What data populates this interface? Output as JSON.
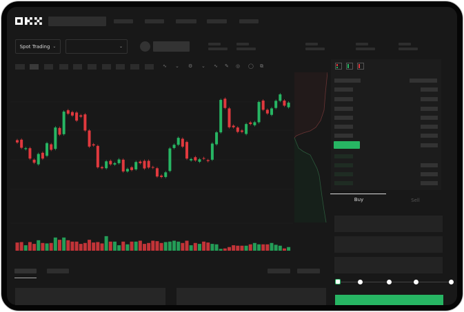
{
  "header": {
    "logo": "OKX"
  },
  "toolbar": {
    "market_label": "Spot Trading",
    "pair_select": ""
  },
  "trade": {
    "buy_tab": "Buy",
    "sell_tab": "Sell",
    "active_tab": "Buy",
    "leverage_slider_value": 0,
    "slider_steps": [
      0,
      25,
      50,
      75,
      100
    ]
  },
  "colors": {
    "up": "#27b563",
    "down": "#e0393e",
    "background": "#181818"
  },
  "chart_data": {
    "type": "candlestick",
    "candles": [
      [
        50,
        48
      ],
      [
        50.4,
        43.4
      ],
      [
        42.2,
        43
      ],
      [
        43,
        34
      ],
      [
        33,
        30.4
      ],
      [
        29,
        38
      ],
      [
        39,
        34
      ],
      [
        36.4,
        47.4
      ],
      [
        46.4,
        41.6
      ],
      [
        42.4,
        61
      ],
      [
        60.6,
        54.8
      ],
      [
        55.2,
        74.8
      ],
      [
        76,
        73
      ],
      [
        74.4,
        71.4
      ],
      [
        74,
        67
      ],
      [
        71.6,
        70.4
      ],
      [
        72.4,
        58.4
      ],
      [
        58.4,
        44.4
      ],
      [
        46.4,
        45.4
      ],
      [
        45,
        26.4
      ],
      [
        26.6,
        25.6
      ],
      [
        25.6,
        31.6
      ],
      [
        32,
        29
      ],
      [
        28.8,
        30
      ],
      [
        30,
        33.2
      ],
      [
        33,
        22.8
      ],
      [
        22.8,
        25
      ],
      [
        26.4,
        24
      ],
      [
        24.6,
        31
      ],
      [
        31.4,
        30
      ],
      [
        32,
        25.4
      ],
      [
        32,
        26.2
      ],
      [
        26.6,
        26
      ],
      [
        25.6,
        18.4
      ],
      [
        19.2,
        18
      ],
      [
        18,
        22
      ],
      [
        23.2,
        42.8
      ],
      [
        43.2,
        46
      ],
      [
        46,
        52
      ],
      [
        51.2,
        44.4
      ],
      [
        48.4,
        34
      ],
      [
        32.4,
        33.6
      ],
      [
        35.2,
        32.4
      ],
      [
        31.2,
        33.4
      ],
      [
        34.4,
        34
      ],
      [
        32.6,
        31.8
      ],
      [
        33,
        47
      ],
      [
        46.4,
        56.8
      ],
      [
        56.8,
        85
      ],
      [
        86,
        78
      ],
      [
        77.6,
        61.2
      ],
      [
        62.6,
        61.2
      ],
      [
        61,
        57.2
      ],
      [
        58.4,
        57.2
      ],
      [
        55.4,
        64
      ],
      [
        65.4,
        64
      ],
      [
        63,
        65.6
      ],
      [
        65.6,
        83.2
      ],
      [
        84.4,
        76.4
      ],
      [
        76.4,
        73.2
      ],
      [
        72,
        77.6
      ],
      [
        78,
        84.2
      ],
      [
        84.2,
        89.8
      ],
      [
        84.4,
        80
      ],
      [
        78.6,
        82.6
      ]
    ],
    "volume": [
      36,
      38,
      24,
      38,
      30,
      46,
      34,
      32,
      34,
      58,
      48,
      58,
      46,
      40,
      40,
      30,
      34,
      48,
      36,
      38,
      32,
      64,
      40,
      40,
      24,
      40,
      28,
      40,
      40,
      44,
      30,
      34,
      44,
      42,
      34,
      38,
      40,
      44,
      40,
      34,
      44,
      24,
      34,
      30,
      40,
      36,
      30,
      28,
      8,
      10,
      16,
      24,
      22,
      22,
      22,
      28,
      34,
      28,
      28,
      28,
      34,
      26,
      22,
      10,
      16
    ],
    "grid": true
  }
}
